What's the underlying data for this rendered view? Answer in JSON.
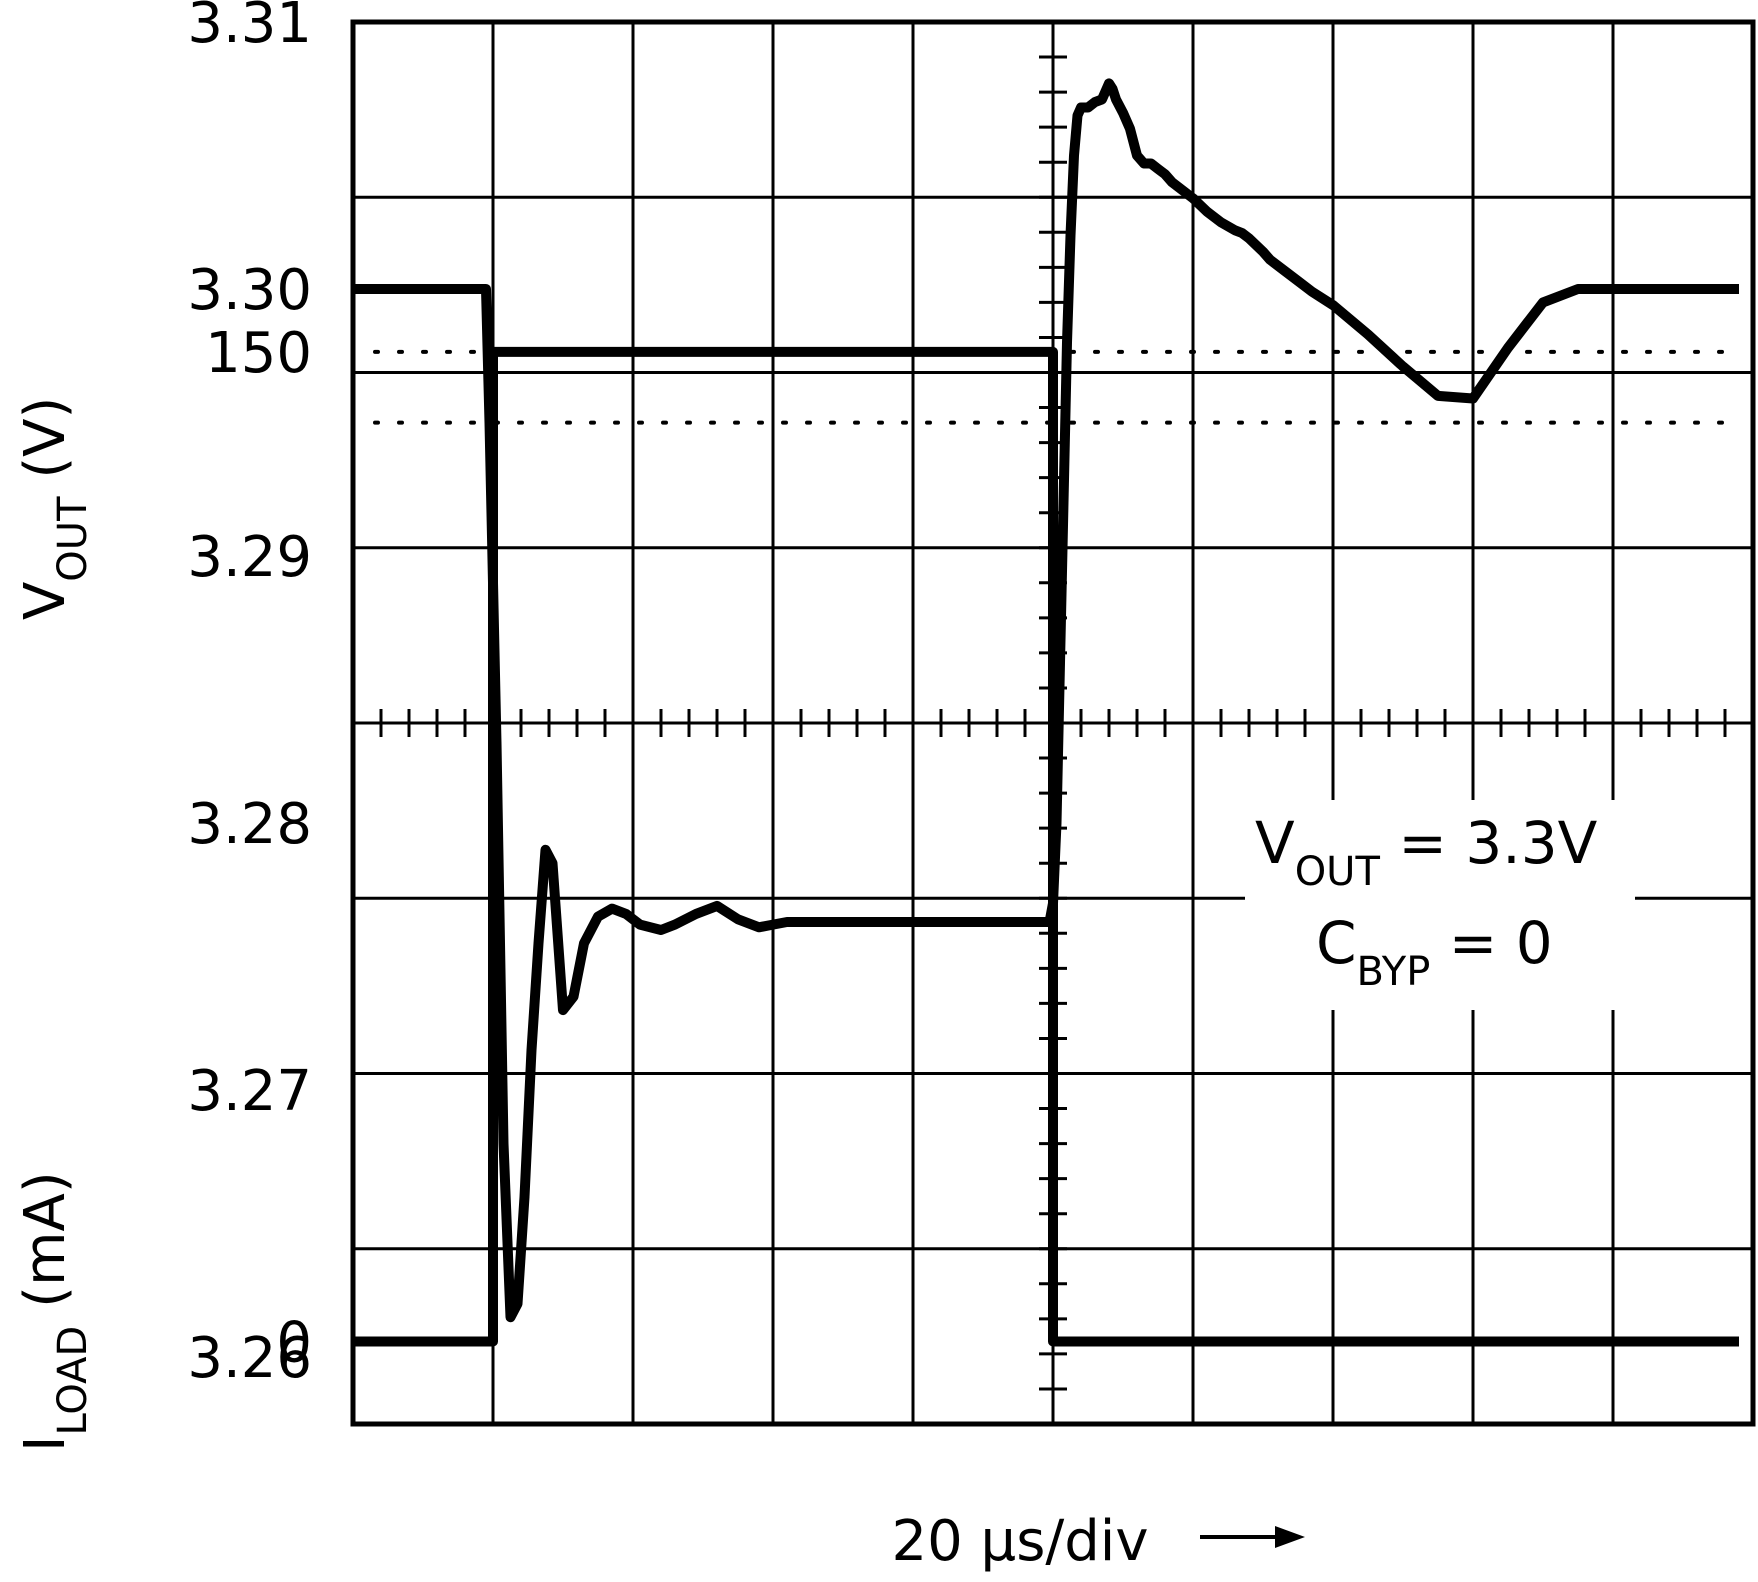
{
  "chart_data": {
    "type": "line",
    "title": "",
    "xlabel": "20 μs/div",
    "x_units": "μs",
    "x_per_div": 20,
    "xlim": [
      0,
      200
    ],
    "grid": true,
    "vout_axis": {
      "label_main": "V",
      "label_sub": "OUT",
      "label_unit": " (V)",
      "ylim": [
        3.2575,
        3.31
      ],
      "ticks": [
        "3.31",
        "3.30",
        "3.29",
        "3.28",
        "3.27",
        "3.26"
      ],
      "tick_values": [
        3.31,
        3.3,
        3.29,
        3.28,
        3.27,
        3.26
      ]
    },
    "iload_axis": {
      "label_main": "I",
      "label_sub": "LOAD",
      "label_unit": " (mA)",
      "ylim": [
        -12.5,
        200
      ],
      "ticks": [
        "150",
        "0"
      ],
      "tick_values": [
        150,
        0
      ]
    },
    "annotation": {
      "line1_main": "V",
      "line1_sub": "OUT",
      "line1_rest": " = 3.3V",
      "line2_main": "C",
      "line2_sub": "BYP",
      "line2_rest": " = 0"
    },
    "series": [
      {
        "axis": "vout",
        "x": [
          0,
          19,
          19.5,
          20.5,
          21.5,
          22.5,
          23.5,
          24.5,
          25.5,
          26.5,
          27.5,
          28.5,
          30,
          31.5,
          33,
          35,
          37,
          39,
          41,
          44,
          46,
          49,
          52,
          55,
          58,
          60,
          62,
          64,
          66,
          68,
          70,
          72,
          74,
          76,
          78,
          80,
          85,
          90,
          95,
          99,
          99.5,
          100,
          100.5,
          101,
          101.5,
          102,
          102.5,
          103,
          103.5,
          104,
          105,
          106,
          107,
          107.5,
          108,
          108.5,
          109,
          110,
          111,
          112,
          113,
          114,
          115,
          116,
          117,
          118,
          120,
          122,
          124,
          126,
          127,
          128,
          130,
          131,
          133,
          135,
          137,
          140,
          145,
          150,
          155,
          160,
          165,
          170,
          175,
          180,
          185,
          190,
          195,
          198
        ],
        "y": [
          3.3,
          3.3,
          3.295,
          3.283,
          3.268,
          3.2615,
          3.262,
          3.266,
          3.2715,
          3.2755,
          3.279,
          3.2785,
          3.273,
          3.2735,
          3.2755,
          3.2765,
          3.2768,
          3.2766,
          3.2762,
          3.276,
          3.2762,
          3.2766,
          3.2769,
          3.2764,
          3.2761,
          3.2762,
          3.2763,
          3.2763,
          3.2763,
          3.2763,
          3.2763,
          3.2763,
          3.2763,
          3.2763,
          3.2763,
          3.2763,
          3.2763,
          3.2763,
          3.2763,
          3.2763,
          3.2763,
          3.277,
          3.28,
          3.286,
          3.292,
          3.298,
          3.302,
          3.305,
          3.3065,
          3.3068,
          3.3068,
          3.307,
          3.3071,
          3.3074,
          3.3077,
          3.3075,
          3.3071,
          3.3066,
          3.306,
          3.305,
          3.3047,
          3.3047,
          3.3045,
          3.3043,
          3.304,
          3.3038,
          3.3034,
          3.3029,
          3.3025,
          3.3022,
          3.3021,
          3.3019,
          3.3014,
          3.3011,
          3.3007,
          3.3003,
          3.2999,
          3.2994,
          3.2983,
          3.2971,
          3.296,
          3.2959,
          3.2978,
          3.2995,
          3.3,
          3.3,
          3.3,
          3.3,
          3.3,
          3.3
        ]
      },
      {
        "axis": "iload",
        "x": [
          0,
          20,
          20,
          100,
          100,
          198
        ],
        "y": [
          0,
          0,
          150,
          150,
          0,
          0
        ]
      }
    ]
  }
}
